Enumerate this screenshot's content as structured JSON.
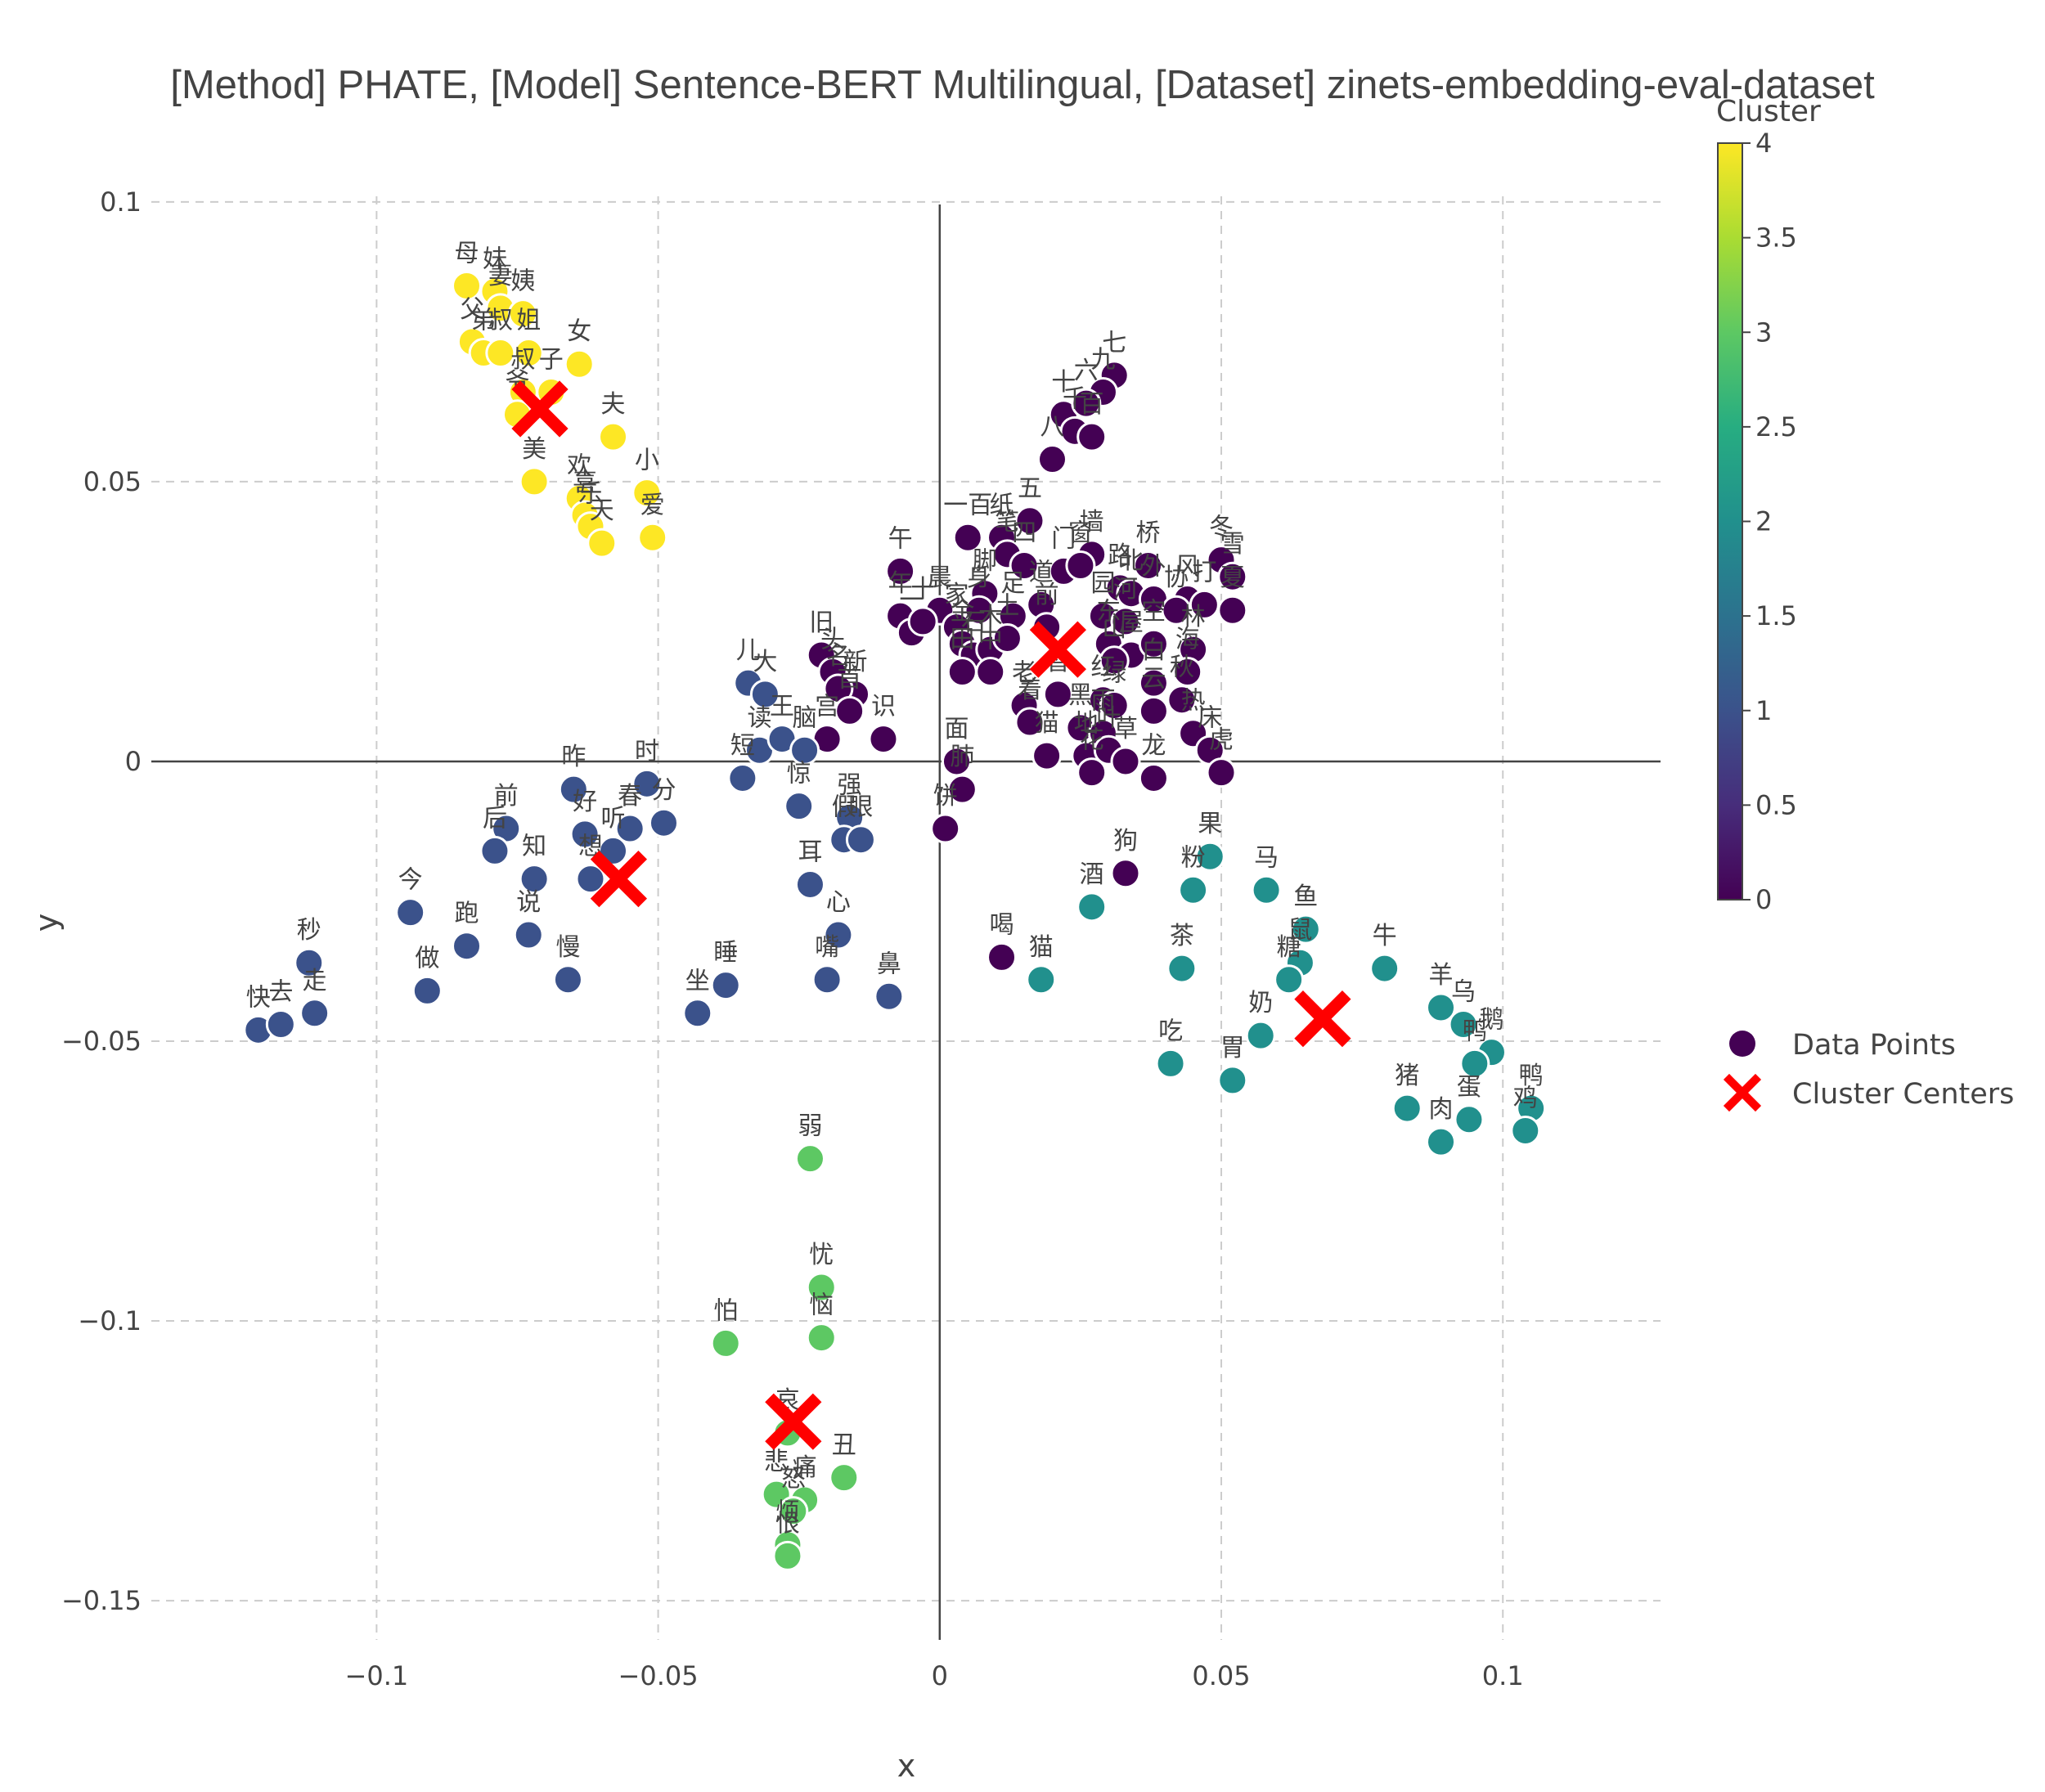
{
  "chart_data": {
    "type": "scatter",
    "title": "[Method] PHATE, [Model] Sentence-BERT Multilingual, [Dataset] zinets-embedding-eval-dataset",
    "xlabel": "x",
    "ylabel": "y",
    "xlim": [
      -0.14,
      0.128
    ],
    "ylim": [
      -0.157,
      0.101
    ],
    "xticks": [
      -0.1,
      -0.05,
      0,
      0.05,
      0.1
    ],
    "xtick_labels": [
      "−0.1",
      "−0.05",
      "0",
      "0.05",
      "0.1"
    ],
    "yticks": [
      0.1,
      0.05,
      0,
      -0.05,
      -0.1,
      -0.15
    ],
    "ytick_labels": [
      "0.1",
      "0.05",
      "0",
      "−0.05",
      "−0.1",
      "−0.15"
    ],
    "grid": true,
    "colorbar": {
      "title": "Cluster",
      "range": [
        0,
        4
      ],
      "ticks": [
        0,
        0.5,
        1,
        1.5,
        2,
        2.5,
        3,
        3.5,
        4
      ],
      "tick_labels": [
        "0",
        "0.5",
        "1",
        "1.5",
        "2",
        "2.5",
        "3",
        "3.5",
        "4"
      ],
      "colorscale": "viridis"
    },
    "cluster_colors": [
      "#440154",
      "#3b528b",
      "#21908d",
      "#5dc863",
      "#fde725"
    ],
    "legend": {
      "position": "right",
      "items": [
        {
          "label": "Data Points",
          "symbol": "circle",
          "color": "#440154"
        },
        {
          "label": "Cluster Centers",
          "symbol": "x",
          "color": "#ff0000"
        }
      ]
    },
    "centers": [
      {
        "cluster": 0,
        "x": 0.021,
        "y": 0.02
      },
      {
        "cluster": 1,
        "x": -0.057,
        "y": -0.021
      },
      {
        "cluster": 2,
        "x": 0.068,
        "y": -0.046
      },
      {
        "cluster": 3,
        "x": -0.026,
        "y": -0.118
      },
      {
        "cluster": 4,
        "x": -0.071,
        "y": 0.063
      }
    ],
    "points": [
      {
        "label": "母",
        "x": -0.084,
        "y": 0.085,
        "cluster": 4
      },
      {
        "label": "妹",
        "x": -0.079,
        "y": 0.084,
        "cluster": 4
      },
      {
        "label": "妻",
        "x": -0.078,
        "y": 0.081,
        "cluster": 4
      },
      {
        "label": "姨",
        "x": -0.074,
        "y": 0.08,
        "cluster": 4
      },
      {
        "label": "父",
        "x": -0.083,
        "y": 0.075,
        "cluster": 4
      },
      {
        "label": "弟",
        "x": -0.081,
        "y": 0.073,
        "cluster": 4
      },
      {
        "label": "叔",
        "x": -0.078,
        "y": 0.073,
        "cluster": 4
      },
      {
        "label": "姐",
        "x": -0.073,
        "y": 0.073,
        "cluster": 4
      },
      {
        "label": "女",
        "x": -0.064,
        "y": 0.071,
        "cluster": 4
      },
      {
        "label": "叔",
        "x": -0.074,
        "y": 0.066,
        "cluster": 4
      },
      {
        "label": "子",
        "x": -0.069,
        "y": 0.066,
        "cluster": 4
      },
      {
        "label": "爷",
        "x": -0.075,
        "y": 0.062,
        "cluster": 4
      },
      {
        "label": "夫",
        "x": -0.058,
        "y": 0.058,
        "cluster": 4
      },
      {
        "label": "美",
        "x": -0.072,
        "y": 0.05,
        "cluster": 4
      },
      {
        "label": "欢",
        "x": -0.064,
        "y": 0.047,
        "cluster": 4
      },
      {
        "label": "喜",
        "x": -0.063,
        "y": 0.044,
        "cluster": 4
      },
      {
        "label": "乐",
        "x": -0.062,
        "y": 0.042,
        "cluster": 4
      },
      {
        "label": "天",
        "x": -0.06,
        "y": 0.039,
        "cluster": 4
      },
      {
        "label": "小",
        "x": -0.052,
        "y": 0.048,
        "cluster": 4
      },
      {
        "label": "爱",
        "x": -0.051,
        "y": 0.04,
        "cluster": 4
      },
      {
        "label": "七",
        "x": 0.031,
        "y": 0.069,
        "cluster": 0
      },
      {
        "label": "九",
        "x": 0.029,
        "y": 0.066,
        "cluster": 0
      },
      {
        "label": "十",
        "x": 0.022,
        "y": 0.062,
        "cluster": 0
      },
      {
        "label": "六",
        "x": 0.026,
        "y": 0.064,
        "cluster": 0
      },
      {
        "label": "千",
        "x": 0.024,
        "y": 0.059,
        "cluster": 0
      },
      {
        "label": "百",
        "x": 0.027,
        "y": 0.058,
        "cluster": 0
      },
      {
        "label": "八",
        "x": 0.02,
        "y": 0.054,
        "cluster": 0
      },
      {
        "label": "五",
        "x": 0.016,
        "y": 0.043,
        "cluster": 0
      },
      {
        "label": "一百",
        "x": 0.005,
        "y": 0.04,
        "cluster": 0
      },
      {
        "label": "纸",
        "x": 0.011,
        "y": 0.04,
        "cluster": 0
      },
      {
        "label": "笔",
        "x": 0.012,
        "y": 0.037,
        "cluster": 0
      },
      {
        "label": "四",
        "x": 0.015,
        "y": 0.035,
        "cluster": 0
      },
      {
        "label": "午",
        "x": -0.007,
        "y": 0.034,
        "cluster": 0
      },
      {
        "label": "墙",
        "x": 0.027,
        "y": 0.037,
        "cluster": 0
      },
      {
        "label": "门",
        "x": 0.022,
        "y": 0.034,
        "cluster": 0
      },
      {
        "label": "窗",
        "x": 0.025,
        "y": 0.035,
        "cluster": 0
      },
      {
        "label": "桥",
        "x": 0.037,
        "y": 0.035,
        "cluster": 0
      },
      {
        "label": "冬",
        "x": 0.05,
        "y": 0.036,
        "cluster": 0
      },
      {
        "label": "雪",
        "x": 0.052,
        "y": 0.033,
        "cluster": 0
      },
      {
        "label": "风",
        "x": 0.044,
        "y": 0.029,
        "cluster": 0
      },
      {
        "label": "路",
        "x": 0.032,
        "y": 0.031,
        "cluster": 0
      },
      {
        "label": "北",
        "x": 0.034,
        "y": 0.03,
        "cluster": 0
      },
      {
        "label": "外",
        "x": 0.038,
        "y": 0.029,
        "cluster": 0
      },
      {
        "label": "晨",
        "x": 0.0,
        "y": 0.027,
        "cluster": 0
      },
      {
        "label": "年",
        "x": -0.007,
        "y": 0.026,
        "cluster": 0
      },
      {
        "label": "一",
        "x": -0.005,
        "y": 0.023,
        "cluster": 0
      },
      {
        "label": "十",
        "x": -0.003,
        "y": 0.025,
        "cluster": 0
      },
      {
        "label": "家",
        "x": 0.003,
        "y": 0.024,
        "cluster": 0
      },
      {
        "label": "脚",
        "x": 0.008,
        "y": 0.03,
        "cluster": 0
      },
      {
        "label": "身",
        "x": 0.007,
        "y": 0.027,
        "cluster": 0
      },
      {
        "label": "足",
        "x": 0.013,
        "y": 0.026,
        "cluster": 0
      },
      {
        "label": "道",
        "x": 0.018,
        "y": 0.028,
        "cluster": 0
      },
      {
        "label": "前",
        "x": 0.019,
        "y": 0.024,
        "cluster": 0
      },
      {
        "label": "园",
        "x": 0.029,
        "y": 0.026,
        "cluster": 0
      },
      {
        "label": "河",
        "x": 0.033,
        "y": 0.025,
        "cluster": 0
      },
      {
        "label": "协",
        "x": 0.042,
        "y": 0.027,
        "cluster": 0
      },
      {
        "label": "打",
        "x": 0.047,
        "y": 0.028,
        "cluster": 0
      },
      {
        "label": "夏",
        "x": 0.052,
        "y": 0.027,
        "cluster": 0
      },
      {
        "label": "金",
        "x": 0.004,
        "y": 0.021,
        "cluster": 0
      },
      {
        "label": "石",
        "x": 0.006,
        "y": 0.019,
        "cluster": 0
      },
      {
        "label": "木",
        "x": 0.009,
        "y": 0.02,
        "cluster": 0
      },
      {
        "label": "土",
        "x": 0.012,
        "y": 0.022,
        "cluster": 0
      },
      {
        "label": "中",
        "x": 0.009,
        "y": 0.016,
        "cluster": 0
      },
      {
        "label": "田",
        "x": 0.004,
        "y": 0.016,
        "cluster": 0
      },
      {
        "label": "东",
        "x": 0.03,
        "y": 0.021,
        "cluster": 0
      },
      {
        "label": "屋",
        "x": 0.034,
        "y": 0.019,
        "cluster": 0
      },
      {
        "label": "空",
        "x": 0.038,
        "y": 0.021,
        "cluster": 0
      },
      {
        "label": "林",
        "x": 0.045,
        "y": 0.02,
        "cluster": 0
      },
      {
        "label": "山",
        "x": 0.031,
        "y": 0.018,
        "cluster": 0
      },
      {
        "label": "海",
        "x": 0.044,
        "y": 0.016,
        "cluster": 0
      },
      {
        "label": "白",
        "x": 0.038,
        "y": 0.014,
        "cluster": 0
      },
      {
        "label": "老",
        "x": 0.015,
        "y": 0.01,
        "cluster": 0
      },
      {
        "label": "着",
        "x": 0.016,
        "y": 0.007,
        "cluster": 0
      },
      {
        "label": "智",
        "x": 0.021,
        "y": 0.012,
        "cluster": 0
      },
      {
        "label": "红",
        "x": 0.029,
        "y": 0.011,
        "cluster": 0
      },
      {
        "label": "绿",
        "x": 0.031,
        "y": 0.01,
        "cluster": 0
      },
      {
        "label": "黑",
        "x": 0.025,
        "y": 0.006,
        "cluster": 0
      },
      {
        "label": "雨",
        "x": 0.029,
        "y": 0.005,
        "cluster": 0
      },
      {
        "label": "云",
        "x": 0.038,
        "y": 0.009,
        "cluster": 0
      },
      {
        "label": "秋",
        "x": 0.043,
        "y": 0.011,
        "cluster": 0
      },
      {
        "label": "热",
        "x": 0.045,
        "y": 0.005,
        "cluster": 0
      },
      {
        "label": "床",
        "x": 0.048,
        "y": 0.002,
        "cluster": 0
      },
      {
        "label": "虎",
        "x": 0.05,
        "y": -0.002,
        "cluster": 0
      },
      {
        "label": "龙",
        "x": 0.038,
        "y": -0.003,
        "cluster": 0
      },
      {
        "label": "地",
        "x": 0.026,
        "y": 0.001,
        "cluster": 0
      },
      {
        "label": "叶",
        "x": 0.03,
        "y": 0.002,
        "cluster": 0
      },
      {
        "label": "草",
        "x": 0.033,
        "y": 0.0,
        "cluster": 0
      },
      {
        "label": "花",
        "x": 0.027,
        "y": -0.002,
        "cluster": 0
      },
      {
        "label": "猫",
        "x": 0.019,
        "y": 0.001,
        "cluster": 0
      },
      {
        "label": "面",
        "x": 0.003,
        "y": 0.0,
        "cluster": 0
      },
      {
        "label": "肺",
        "x": 0.004,
        "y": -0.005,
        "cluster": 0
      },
      {
        "label": "饼",
        "x": 0.001,
        "y": -0.012,
        "cluster": 0
      },
      {
        "label": "旧",
        "x": -0.021,
        "y": 0.019,
        "cluster": 0
      },
      {
        "label": "头",
        "x": -0.019,
        "y": 0.016,
        "cluster": 0
      },
      {
        "label": "新",
        "x": -0.015,
        "y": 0.012,
        "cluster": 0
      },
      {
        "label": "名",
        "x": -0.018,
        "y": 0.013,
        "cluster": 0
      },
      {
        "label": "首",
        "x": -0.016,
        "y": 0.009,
        "cluster": 0
      },
      {
        "label": "宫",
        "x": -0.02,
        "y": 0.004,
        "cluster": 0
      },
      {
        "label": "识",
        "x": -0.01,
        "y": 0.004,
        "cluster": 0
      },
      {
        "label": "狗",
        "x": 0.033,
        "y": -0.02,
        "cluster": 0
      },
      {
        "label": "喝",
        "x": 0.011,
        "y": -0.035,
        "cluster": 0
      },
      {
        "label": "儿",
        "x": -0.034,
        "y": 0.014,
        "cluster": 1
      },
      {
        "label": "大",
        "x": -0.031,
        "y": 0.012,
        "cluster": 1
      },
      {
        "label": "读",
        "x": -0.032,
        "y": 0.002,
        "cluster": 1
      },
      {
        "label": "王",
        "x": -0.028,
        "y": 0.004,
        "cluster": 1
      },
      {
        "label": "脑",
        "x": -0.024,
        "y": 0.002,
        "cluster": 1
      },
      {
        "label": "短",
        "x": -0.035,
        "y": -0.003,
        "cluster": 1
      },
      {
        "label": "惊",
        "x": -0.025,
        "y": -0.008,
        "cluster": 1
      },
      {
        "label": "强",
        "x": -0.016,
        "y": -0.01,
        "cluster": 1
      },
      {
        "label": "假",
        "x": -0.017,
        "y": -0.014,
        "cluster": 1
      },
      {
        "label": "眼",
        "x": -0.014,
        "y": -0.014,
        "cluster": 1
      },
      {
        "label": "昨",
        "x": -0.065,
        "y": -0.005,
        "cluster": 1
      },
      {
        "label": "时",
        "x": -0.052,
        "y": -0.004,
        "cluster": 1
      },
      {
        "label": "分",
        "x": -0.049,
        "y": -0.011,
        "cluster": 1
      },
      {
        "label": "春",
        "x": -0.055,
        "y": -0.012,
        "cluster": 1
      },
      {
        "label": "好",
        "x": -0.063,
        "y": -0.013,
        "cluster": 1
      },
      {
        "label": "听",
        "x": -0.058,
        "y": -0.016,
        "cluster": 1
      },
      {
        "label": "想",
        "x": -0.062,
        "y": -0.021,
        "cluster": 1
      },
      {
        "label": "前",
        "x": -0.077,
        "y": -0.012,
        "cluster": 1
      },
      {
        "label": "后",
        "x": -0.079,
        "y": -0.016,
        "cluster": 1
      },
      {
        "label": "知",
        "x": -0.072,
        "y": -0.021,
        "cluster": 1
      },
      {
        "label": "今",
        "x": -0.094,
        "y": -0.027,
        "cluster": 1
      },
      {
        "label": "跑",
        "x": -0.084,
        "y": -0.033,
        "cluster": 1
      },
      {
        "label": "说",
        "x": -0.073,
        "y": -0.031,
        "cluster": 1
      },
      {
        "label": "做",
        "x": -0.091,
        "y": -0.041,
        "cluster": 1
      },
      {
        "label": "慢",
        "x": -0.066,
        "y": -0.039,
        "cluster": 1
      },
      {
        "label": "秒",
        "x": -0.112,
        "y": -0.036,
        "cluster": 1
      },
      {
        "label": "快",
        "x": -0.121,
        "y": -0.048,
        "cluster": 1
      },
      {
        "label": "去",
        "x": -0.117,
        "y": -0.047,
        "cluster": 1
      },
      {
        "label": "走",
        "x": -0.111,
        "y": -0.045,
        "cluster": 1
      },
      {
        "label": "耳",
        "x": -0.023,
        "y": -0.022,
        "cluster": 1
      },
      {
        "label": "心",
        "x": -0.018,
        "y": -0.031,
        "cluster": 1
      },
      {
        "label": "嘴",
        "x": -0.02,
        "y": -0.039,
        "cluster": 1
      },
      {
        "label": "鼻",
        "x": -0.009,
        "y": -0.042,
        "cluster": 1
      },
      {
        "label": "睡",
        "x": -0.038,
        "y": -0.04,
        "cluster": 1
      },
      {
        "label": "坐",
        "x": -0.043,
        "y": -0.045,
        "cluster": 1
      },
      {
        "label": "果",
        "x": 0.048,
        "y": -0.017,
        "cluster": 2
      },
      {
        "label": "粉",
        "x": 0.045,
        "y": -0.023,
        "cluster": 2
      },
      {
        "label": "马",
        "x": 0.058,
        "y": -0.023,
        "cluster": 2
      },
      {
        "label": "酒",
        "x": 0.027,
        "y": -0.026,
        "cluster": 2
      },
      {
        "label": "鱼",
        "x": 0.065,
        "y": -0.03,
        "cluster": 2
      },
      {
        "label": "牛",
        "x": 0.079,
        "y": -0.037,
        "cluster": 2
      },
      {
        "label": "茶",
        "x": 0.043,
        "y": -0.037,
        "cluster": 2
      },
      {
        "label": "鼠",
        "x": 0.064,
        "y": -0.036,
        "cluster": 2
      },
      {
        "label": "糖",
        "x": 0.062,
        "y": -0.039,
        "cluster": 2
      },
      {
        "label": "猫",
        "x": 0.018,
        "y": -0.039,
        "cluster": 2
      },
      {
        "label": "羊",
        "x": 0.089,
        "y": -0.044,
        "cluster": 2
      },
      {
        "label": "乌",
        "x": 0.093,
        "y": -0.047,
        "cluster": 2
      },
      {
        "label": "奶",
        "x": 0.057,
        "y": -0.049,
        "cluster": 2
      },
      {
        "label": "鹅",
        "x": 0.098,
        "y": -0.052,
        "cluster": 2
      },
      {
        "label": "鸭",
        "x": 0.095,
        "y": -0.054,
        "cluster": 2
      },
      {
        "label": "吃",
        "x": 0.041,
        "y": -0.054,
        "cluster": 2
      },
      {
        "label": "胃",
        "x": 0.052,
        "y": -0.057,
        "cluster": 2
      },
      {
        "label": "猪",
        "x": 0.083,
        "y": -0.062,
        "cluster": 2
      },
      {
        "label": "肉",
        "x": 0.089,
        "y": -0.068,
        "cluster": 2
      },
      {
        "label": "蛋",
        "x": 0.094,
        "y": -0.064,
        "cluster": 2
      },
      {
        "label": "鸭",
        "x": 0.105,
        "y": -0.062,
        "cluster": 2
      },
      {
        "label": "鸡",
        "x": 0.104,
        "y": -0.066,
        "cluster": 2
      },
      {
        "label": "弱",
        "x": -0.023,
        "y": -0.071,
        "cluster": 3
      },
      {
        "label": "忧",
        "x": -0.021,
        "y": -0.094,
        "cluster": 3
      },
      {
        "label": "怕",
        "x": -0.038,
        "y": -0.104,
        "cluster": 3
      },
      {
        "label": "恼",
        "x": -0.021,
        "y": -0.103,
        "cluster": 3
      },
      {
        "label": "哀",
        "x": -0.027,
        "y": -0.12,
        "cluster": 3
      },
      {
        "label": "丑",
        "x": -0.017,
        "y": -0.128,
        "cluster": 3
      },
      {
        "label": "悲",
        "x": -0.029,
        "y": -0.131,
        "cluster": 3
      },
      {
        "label": "痛",
        "x": -0.024,
        "y": -0.132,
        "cluster": 3
      },
      {
        "label": "怒",
        "x": -0.026,
        "y": -0.134,
        "cluster": 3
      },
      {
        "label": "烦",
        "x": -0.027,
        "y": -0.14,
        "cluster": 3
      },
      {
        "label": "恨",
        "x": -0.027,
        "y": -0.142,
        "cluster": 3
      }
    ]
  }
}
